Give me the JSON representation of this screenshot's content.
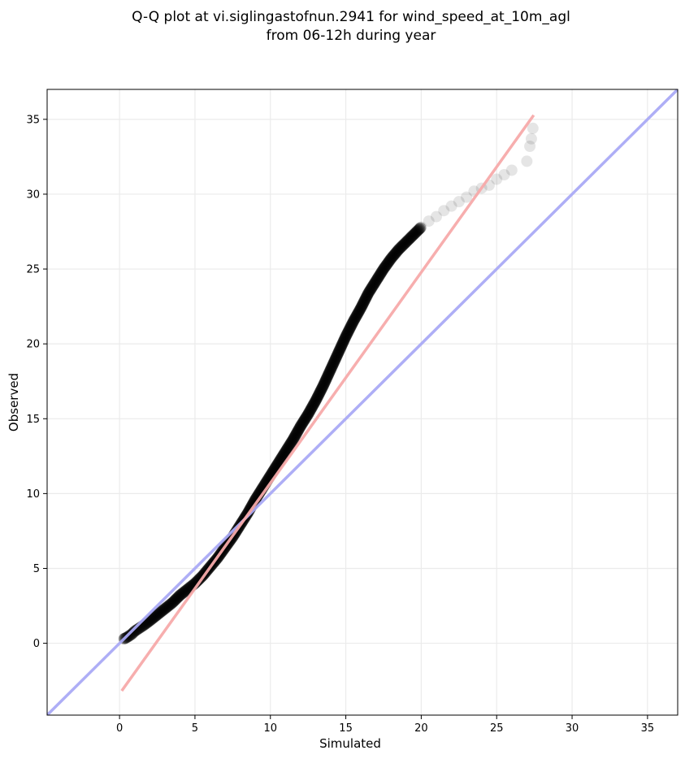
{
  "chart_data": {
    "type": "scatter",
    "title_lines": [
      "Q-Q plot at vi.siglingastofnun.2941 for wind_speed_at_10m_agl",
      "from 06-12h during year"
    ],
    "xlabel": "Simulated",
    "ylabel": "Observed",
    "xlim": [
      -4.8,
      37.0
    ],
    "ylim": [
      -4.8,
      37.0
    ],
    "xticks": [
      0,
      5,
      10,
      15,
      20,
      25,
      30,
      35
    ],
    "yticks": [
      0,
      5,
      10,
      15,
      20,
      25,
      30,
      35
    ],
    "grid": true,
    "legend": "none",
    "colors": {
      "points": "#000000",
      "identity_line": "#aaaaf5",
      "fit_line": "#f7aaaa",
      "grid": "#ebebeb"
    },
    "series": [
      {
        "kind": "points",
        "x": [
          0.3,
          0.5,
          0.8,
          1.0,
          1.3,
          1.6,
          2.0,
          2.5,
          3.0,
          3.5,
          4.0,
          4.5,
          5.0,
          5.5,
          6.0,
          6.5,
          7.0,
          7.5,
          8.0,
          8.5,
          9.0,
          9.5,
          10.0,
          10.5,
          11.0,
          11.5,
          12.0,
          12.5,
          13.0,
          13.5,
          14.0,
          14.5,
          15.0,
          15.5,
          16.0,
          16.5,
          17.0,
          17.5,
          18.0,
          18.5,
          19.0,
          19.5,
          20.0,
          20.5,
          21.0,
          21.5,
          22.0,
          22.5,
          23.0,
          23.5,
          24.0,
          24.5,
          25.0,
          25.5,
          26.0,
          27.0,
          27.2,
          27.3,
          27.4
        ],
        "y": [
          0.3,
          0.4,
          0.6,
          0.8,
          1.0,
          1.2,
          1.5,
          1.9,
          2.3,
          2.7,
          3.2,
          3.6,
          4.0,
          4.5,
          5.1,
          5.7,
          6.4,
          7.1,
          7.9,
          8.7,
          9.6,
          10.4,
          11.2,
          12.0,
          12.8,
          13.6,
          14.5,
          15.3,
          16.2,
          17.2,
          18.3,
          19.4,
          20.5,
          21.5,
          22.4,
          23.4,
          24.2,
          25.0,
          25.7,
          26.3,
          26.8,
          27.3,
          27.8,
          28.2,
          28.5,
          28.9,
          29.2,
          29.5,
          29.8,
          30.2,
          30.4,
          30.6,
          31.0,
          31.3,
          31.6,
          32.2,
          33.2,
          33.7,
          34.4
        ]
      },
      {
        "kind": "line",
        "name_role": "identity",
        "x": [
          -4.8,
          37.0
        ],
        "y": [
          -4.8,
          37.0
        ]
      },
      {
        "kind": "line",
        "name_role": "fit",
        "x": [
          0.2,
          27.4
        ],
        "y": [
          -3.1,
          35.2
        ]
      }
    ]
  }
}
